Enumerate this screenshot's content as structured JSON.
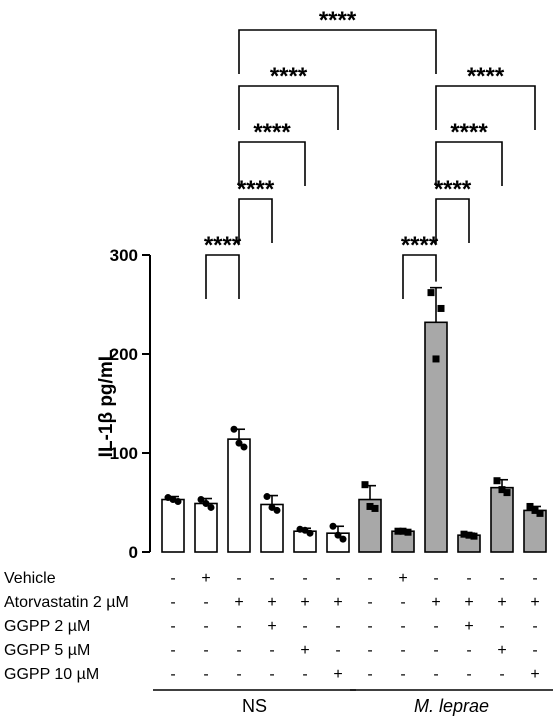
{
  "chart_data": {
    "type": "bar",
    "ylabel": "IL-1β pg/mL",
    "ylim": [
      0,
      300
    ],
    "yticks": [
      0,
      100,
      200,
      300
    ],
    "bar_colors": [
      "#ffffff",
      "#a8a8a8"
    ],
    "bars": [
      {
        "group": 0,
        "mean": 53,
        "sd": 3,
        "points": [
          55,
          51,
          53
        ]
      },
      {
        "group": 0,
        "mean": 49,
        "sd": 5,
        "points": [
          53,
          45,
          49
        ]
      },
      {
        "group": 0,
        "mean": 114,
        "sd": 10,
        "points": [
          124,
          106,
          110
        ]
      },
      {
        "group": 0,
        "mean": 48,
        "sd": 9,
        "points": [
          56,
          42,
          45
        ]
      },
      {
        "group": 0,
        "mean": 21,
        "sd": 3,
        "points": [
          23,
          19,
          22
        ]
      },
      {
        "group": 0,
        "mean": 19,
        "sd": 7,
        "points": [
          26,
          13,
          17
        ]
      },
      {
        "group": 1,
        "mean": 53,
        "sd": 14,
        "points": [
          68,
          44,
          46
        ]
      },
      {
        "group": 1,
        "mean": 21,
        "sd": 1,
        "points": [
          21,
          20,
          21
        ]
      },
      {
        "group": 1,
        "mean": 232,
        "sd": 35,
        "points": [
          262,
          246,
          195
        ]
      },
      {
        "group": 1,
        "mean": 17,
        "sd": 2,
        "points": [
          18,
          16,
          17
        ]
      },
      {
        "group": 1,
        "mean": 65,
        "sd": 8,
        "points": [
          72,
          60,
          63
        ]
      },
      {
        "group": 1,
        "mean": 42,
        "sd": 4,
        "points": [
          46,
          39,
          42
        ]
      }
    ],
    "conditions": [
      {
        "label": "Vehicle",
        "signs": [
          "-",
          "+",
          "-",
          "-",
          "-",
          "-",
          "-",
          "+",
          "-",
          "-",
          "-",
          "-"
        ]
      },
      {
        "label": "Atorvastatin 2 µM",
        "signs": [
          "-",
          "-",
          "+",
          "+",
          "+",
          "+",
          "-",
          "-",
          "+",
          "+",
          "+",
          "+"
        ]
      },
      {
        "label": "GGPP 2 µM",
        "signs": [
          "-",
          "-",
          "-",
          "+",
          "-",
          "-",
          "-",
          "-",
          "-",
          "+",
          "-",
          "-"
        ]
      },
      {
        "label": "GGPP 5 µM",
        "signs": [
          "-",
          "-",
          "-",
          "-",
          "+",
          "-",
          "-",
          "-",
          "-",
          "-",
          "+",
          "-"
        ]
      },
      {
        "label": "GGPP 10 µM",
        "signs": [
          "-",
          "-",
          "-",
          "-",
          "-",
          "+",
          "-",
          "-",
          "-",
          "-",
          "-",
          "+"
        ]
      }
    ],
    "groups": [
      {
        "label": "NS",
        "italic": false,
        "bars": [
          0,
          5
        ]
      },
      {
        "label": "M. leprae",
        "italic": true,
        "bars": [
          6,
          11
        ]
      }
    ],
    "significance": [
      {
        "from": 1,
        "to": 2,
        "label": "****",
        "level": 0
      },
      {
        "from": 2,
        "to": 3,
        "label": "****",
        "level": 1
      },
      {
        "from": 2,
        "to": 4,
        "label": "****",
        "level": 2
      },
      {
        "from": 2,
        "to": 5,
        "label": "****",
        "level": 3
      },
      {
        "from": 2,
        "to": 8,
        "label": "****",
        "level": 4
      },
      {
        "from": 7,
        "to": 8,
        "label": "****",
        "level": 0
      },
      {
        "from": 8,
        "to": 9,
        "label": "****",
        "level": 1
      },
      {
        "from": 8,
        "to": 10,
        "label": "****",
        "level": 2
      },
      {
        "from": 8,
        "to": 11,
        "label": "****",
        "level": 3
      }
    ]
  }
}
